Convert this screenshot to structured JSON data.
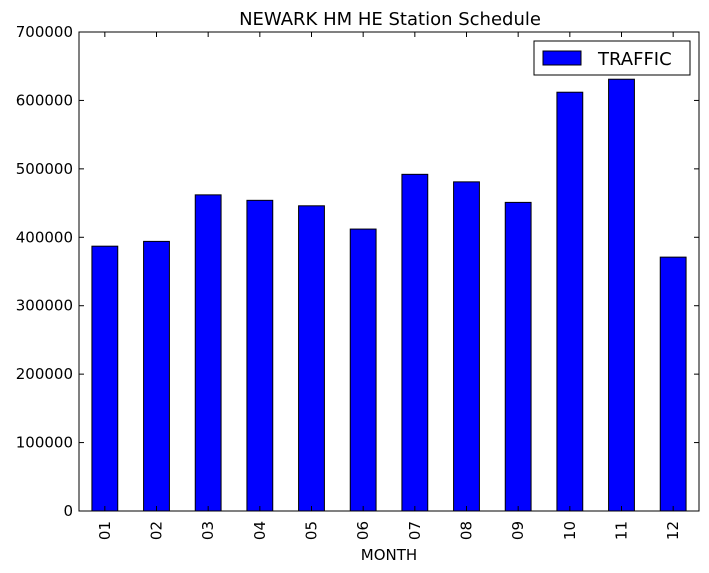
{
  "chart_data": {
    "type": "bar",
    "title": "NEWARK HM HE Station Schedule",
    "xlabel": "MONTH",
    "ylabel": "",
    "categories": [
      "01",
      "02",
      "03",
      "04",
      "05",
      "06",
      "07",
      "08",
      "09",
      "10",
      "11",
      "12"
    ],
    "series": [
      {
        "name": "TRAFFIC",
        "values": [
          387000,
          394000,
          462000,
          454000,
          446000,
          412000,
          492000,
          481000,
          451000,
          612000,
          631000,
          371000
        ]
      }
    ],
    "ylim": [
      0,
      700000
    ],
    "yticks": [
      0,
      100000,
      200000,
      300000,
      400000,
      500000,
      600000,
      700000
    ],
    "ytick_labels": [
      "0",
      "100000",
      "200000",
      "300000",
      "400000",
      "500000",
      "600000",
      "700000"
    ],
    "grid": false,
    "legend_position": "top-right",
    "colors": {
      "bar_fill": "#0000ff",
      "bar_edge": "#000000",
      "axes_edge": "#000000",
      "background": "#ffffff"
    }
  }
}
